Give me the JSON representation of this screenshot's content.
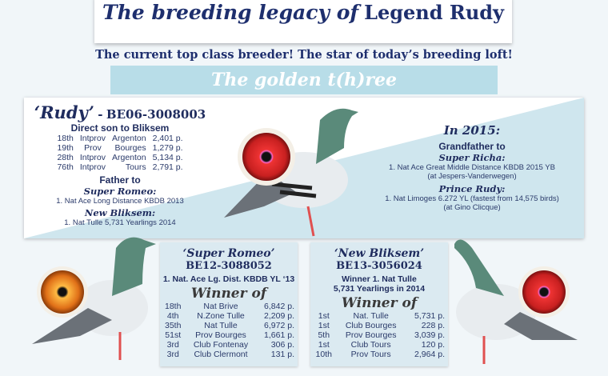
{
  "header": {
    "title_script": "The breeding legacy of",
    "title_plain": "Legend Rudy",
    "subtitle": "The current top class breeder! The star of today’s breeding loft!",
    "banner": "The golden t(h)ree"
  },
  "rudy": {
    "name": "‘Rudy’",
    "dash": "-",
    "ring": "BE06-3008003",
    "line": "Direct son to Bliksem",
    "results": [
      [
        "18th",
        "Intprov",
        "Argenton",
        "2,401 p."
      ],
      [
        "19th",
        "Prov",
        "Bourges",
        "1,279 p."
      ],
      [
        "28th",
        "Intprov",
        "Argenton",
        "5,134 p."
      ],
      [
        "76th",
        "Intprov",
        "Tours",
        "2,791 p."
      ]
    ],
    "father_to": "Father to",
    "child1": "Super Romeo:",
    "child1_text": "1. Nat Ace Long Distance KBDB 2013",
    "child2": "New Bliksem:",
    "child2_text": "1. Nat Tulle 5,731 Yearlings 2014"
  },
  "in2015": {
    "heading": "In 2015:",
    "grandfather": "Grandfather to",
    "g1": "Super Richa:",
    "g1_text": "1. Nat Ace Great Middle Distance KBDB 2015  YB",
    "g1_loft": "(at Jespers-Vanderwegen)",
    "g2": "Prince Rudy:",
    "g2_text": "1. Nat Limoges 6.272 YL (fastest from 14,575 birds)",
    "g2_loft": "(at Gino Clicque)"
  },
  "super_romeo": {
    "name": "‘Super Romeo’",
    "ring": "BE12-3088052",
    "line1": "1. Nat. Ace Lg. Dist. KBDB YL ‘13",
    "winner": "Winner of",
    "results": [
      [
        "18th",
        "Nat Brive",
        "6,842 p."
      ],
      [
        "4th",
        "N.Zone Tulle",
        "2,209 p."
      ],
      [
        "35th",
        "Nat Tulle",
        "6,972 p."
      ],
      [
        "51st",
        "Prov Bourges",
        "1,661 p."
      ],
      [
        "3rd",
        "Club Fontenay",
        "306 p."
      ],
      [
        "3rd",
        "Club Clermont",
        "131 p."
      ]
    ]
  },
  "new_bliksem": {
    "name": "‘New Bliksem’",
    "ring": "BE13-3056024",
    "line1": "Winner 1. Nat Tulle",
    "line2": "5,731 Yearlings in 2014",
    "winner": "Winner of",
    "results": [
      [
        "1st",
        "Nat. Tulle",
        "5,731 p."
      ],
      [
        "1st",
        "Club Bourges",
        "228 p."
      ],
      [
        "5th",
        "Prov Bourges",
        "3,039 p."
      ],
      [
        "1st",
        "Club Tours",
        "120 p."
      ],
      [
        "10th",
        "Prov Tours",
        "2,964 p."
      ]
    ]
  },
  "colors": {
    "navy": "#1e2f6e",
    "banner": "#b8dde8",
    "panel_blue": "#cfe6ee",
    "eye_red": "#d8302a"
  }
}
